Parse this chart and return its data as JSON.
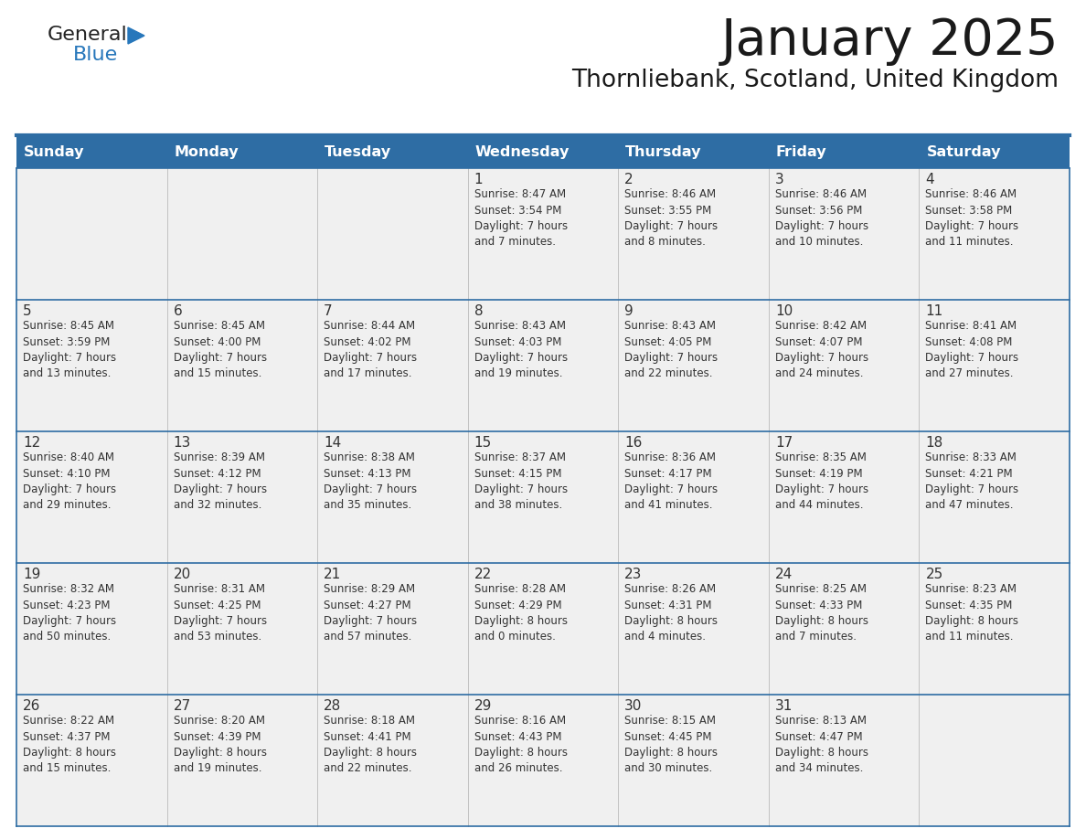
{
  "title": "January 2025",
  "subtitle": "Thornliebank, Scotland, United Kingdom",
  "header_bg": "#2E6DA4",
  "header_text": "#FFFFFF",
  "cell_bg": "#F0F0F0",
  "border_color": "#2E6DA4",
  "text_color": "#333333",
  "day_headers": [
    "Sunday",
    "Monday",
    "Tuesday",
    "Wednesday",
    "Thursday",
    "Friday",
    "Saturday"
  ],
  "title_color": "#1a1a1a",
  "subtitle_color": "#1a1a1a",
  "blue_color": "#2777BB",
  "weeks": [
    [
      {
        "day": "",
        "info": ""
      },
      {
        "day": "",
        "info": ""
      },
      {
        "day": "",
        "info": ""
      },
      {
        "day": "1",
        "info": "Sunrise: 8:47 AM\nSunset: 3:54 PM\nDaylight: 7 hours\nand 7 minutes."
      },
      {
        "day": "2",
        "info": "Sunrise: 8:46 AM\nSunset: 3:55 PM\nDaylight: 7 hours\nand 8 minutes."
      },
      {
        "day": "3",
        "info": "Sunrise: 8:46 AM\nSunset: 3:56 PM\nDaylight: 7 hours\nand 10 minutes."
      },
      {
        "day": "4",
        "info": "Sunrise: 8:46 AM\nSunset: 3:58 PM\nDaylight: 7 hours\nand 11 minutes."
      }
    ],
    [
      {
        "day": "5",
        "info": "Sunrise: 8:45 AM\nSunset: 3:59 PM\nDaylight: 7 hours\nand 13 minutes."
      },
      {
        "day": "6",
        "info": "Sunrise: 8:45 AM\nSunset: 4:00 PM\nDaylight: 7 hours\nand 15 minutes."
      },
      {
        "day": "7",
        "info": "Sunrise: 8:44 AM\nSunset: 4:02 PM\nDaylight: 7 hours\nand 17 minutes."
      },
      {
        "day": "8",
        "info": "Sunrise: 8:43 AM\nSunset: 4:03 PM\nDaylight: 7 hours\nand 19 minutes."
      },
      {
        "day": "9",
        "info": "Sunrise: 8:43 AM\nSunset: 4:05 PM\nDaylight: 7 hours\nand 22 minutes."
      },
      {
        "day": "10",
        "info": "Sunrise: 8:42 AM\nSunset: 4:07 PM\nDaylight: 7 hours\nand 24 minutes."
      },
      {
        "day": "11",
        "info": "Sunrise: 8:41 AM\nSunset: 4:08 PM\nDaylight: 7 hours\nand 27 minutes."
      }
    ],
    [
      {
        "day": "12",
        "info": "Sunrise: 8:40 AM\nSunset: 4:10 PM\nDaylight: 7 hours\nand 29 minutes."
      },
      {
        "day": "13",
        "info": "Sunrise: 8:39 AM\nSunset: 4:12 PM\nDaylight: 7 hours\nand 32 minutes."
      },
      {
        "day": "14",
        "info": "Sunrise: 8:38 AM\nSunset: 4:13 PM\nDaylight: 7 hours\nand 35 minutes."
      },
      {
        "day": "15",
        "info": "Sunrise: 8:37 AM\nSunset: 4:15 PM\nDaylight: 7 hours\nand 38 minutes."
      },
      {
        "day": "16",
        "info": "Sunrise: 8:36 AM\nSunset: 4:17 PM\nDaylight: 7 hours\nand 41 minutes."
      },
      {
        "day": "17",
        "info": "Sunrise: 8:35 AM\nSunset: 4:19 PM\nDaylight: 7 hours\nand 44 minutes."
      },
      {
        "day": "18",
        "info": "Sunrise: 8:33 AM\nSunset: 4:21 PM\nDaylight: 7 hours\nand 47 minutes."
      }
    ],
    [
      {
        "day": "19",
        "info": "Sunrise: 8:32 AM\nSunset: 4:23 PM\nDaylight: 7 hours\nand 50 minutes."
      },
      {
        "day": "20",
        "info": "Sunrise: 8:31 AM\nSunset: 4:25 PM\nDaylight: 7 hours\nand 53 minutes."
      },
      {
        "day": "21",
        "info": "Sunrise: 8:29 AM\nSunset: 4:27 PM\nDaylight: 7 hours\nand 57 minutes."
      },
      {
        "day": "22",
        "info": "Sunrise: 8:28 AM\nSunset: 4:29 PM\nDaylight: 8 hours\nand 0 minutes."
      },
      {
        "day": "23",
        "info": "Sunrise: 8:26 AM\nSunset: 4:31 PM\nDaylight: 8 hours\nand 4 minutes."
      },
      {
        "day": "24",
        "info": "Sunrise: 8:25 AM\nSunset: 4:33 PM\nDaylight: 8 hours\nand 7 minutes."
      },
      {
        "day": "25",
        "info": "Sunrise: 8:23 AM\nSunset: 4:35 PM\nDaylight: 8 hours\nand 11 minutes."
      }
    ],
    [
      {
        "day": "26",
        "info": "Sunrise: 8:22 AM\nSunset: 4:37 PM\nDaylight: 8 hours\nand 15 minutes."
      },
      {
        "day": "27",
        "info": "Sunrise: 8:20 AM\nSunset: 4:39 PM\nDaylight: 8 hours\nand 19 minutes."
      },
      {
        "day": "28",
        "info": "Sunrise: 8:18 AM\nSunset: 4:41 PM\nDaylight: 8 hours\nand 22 minutes."
      },
      {
        "day": "29",
        "info": "Sunrise: 8:16 AM\nSunset: 4:43 PM\nDaylight: 8 hours\nand 26 minutes."
      },
      {
        "day": "30",
        "info": "Sunrise: 8:15 AM\nSunset: 4:45 PM\nDaylight: 8 hours\nand 30 minutes."
      },
      {
        "day": "31",
        "info": "Sunrise: 8:13 AM\nSunset: 4:47 PM\nDaylight: 8 hours\nand 34 minutes."
      },
      {
        "day": "",
        "info": ""
      }
    ]
  ]
}
